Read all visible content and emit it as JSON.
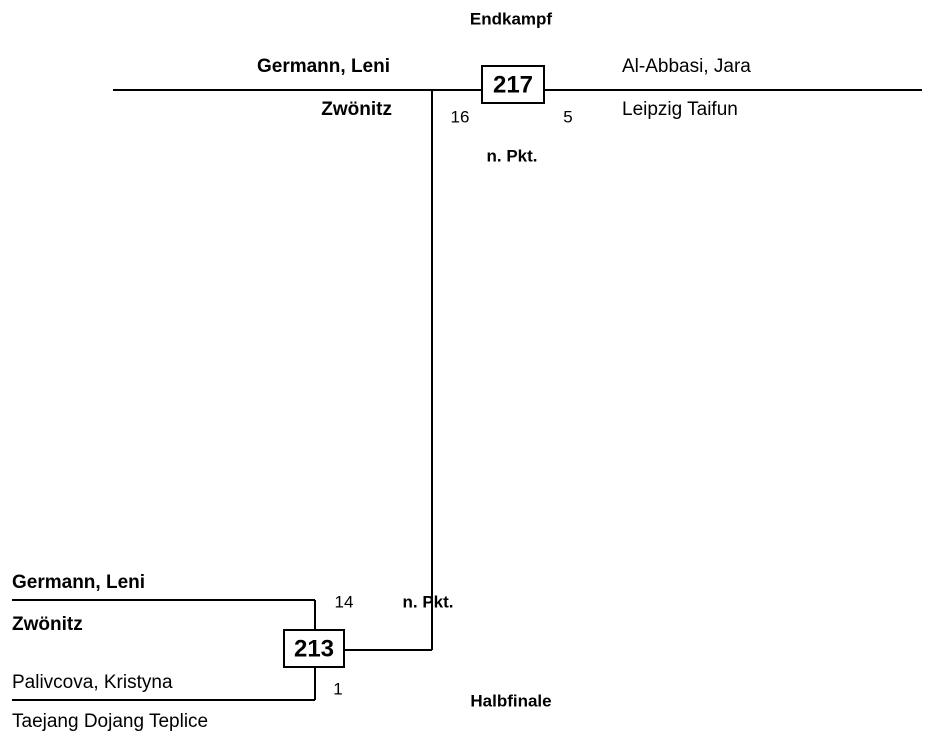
{
  "final": {
    "title": "Endkampf",
    "match": "217",
    "result": "n. Pkt.",
    "winner": {
      "name": "Germann, Leni",
      "club": "Zwönitz",
      "score": "16"
    },
    "loser": {
      "name": "Al-Abbasi, Jara",
      "club": "Leipzig Taifun",
      "score": "5"
    }
  },
  "semifinal": {
    "title": "Halbfinale",
    "match": "213",
    "result": "n. Pkt.",
    "winner": {
      "name": "Germann, Leni",
      "club": "Zwönitz",
      "score": "14"
    },
    "loser": {
      "name": "Palivcova, Kristyna",
      "club": "Taejang Dojang Teplice",
      "score": "1"
    }
  }
}
